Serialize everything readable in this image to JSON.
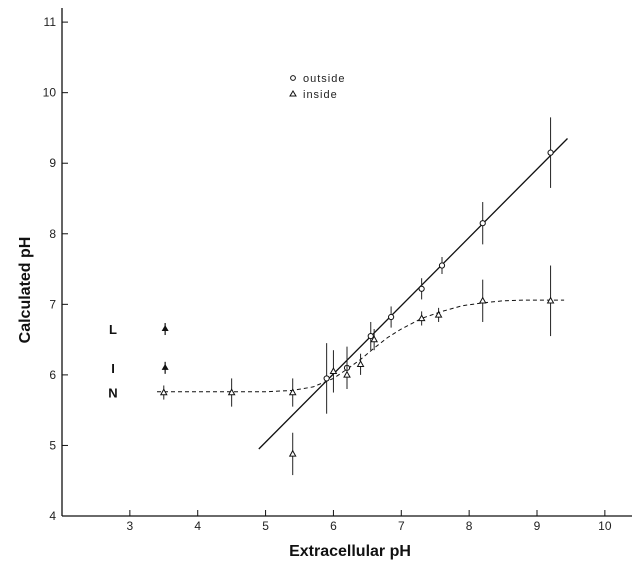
{
  "chart_data": {
    "type": "scatter",
    "xlabel": "Extracellular pH",
    "ylabel": "Calculated pH",
    "xlim": [
      2,
      10.4
    ],
    "ylim": [
      4,
      11.2
    ],
    "xticks": [
      3,
      4,
      5,
      6,
      7,
      8,
      9,
      10
    ],
    "yticks": [
      4,
      5,
      6,
      7,
      8,
      9,
      10,
      11
    ],
    "legend": {
      "position": "top-center",
      "entries": [
        {
          "marker": "circle-open",
          "label": "outside"
        },
        {
          "marker": "triangle-open",
          "label": "inside"
        }
      ]
    },
    "series": [
      {
        "name": "outside",
        "marker": "circle-open",
        "points": [
          {
            "x": 5.9,
            "y": 5.95,
            "err": 0.5
          },
          {
            "x": 6.2,
            "y": 6.1,
            "err": 0.3
          },
          {
            "x": 6.55,
            "y": 6.55,
            "err": 0.2
          },
          {
            "x": 6.85,
            "y": 6.82,
            "err": 0.15
          },
          {
            "x": 7.3,
            "y": 7.22,
            "err": 0.15
          },
          {
            "x": 7.6,
            "y": 7.55,
            "err": 0.12
          },
          {
            "x": 8.2,
            "y": 8.15,
            "err": 0.3
          },
          {
            "x": 9.2,
            "y": 9.15,
            "err": 0.5
          }
        ]
      },
      {
        "name": "inside",
        "marker": "triangle-open",
        "points": [
          {
            "x": 3.5,
            "y": 5.75,
            "err": 0.1
          },
          {
            "x": 4.5,
            "y": 5.75,
            "err": 0.2
          },
          {
            "x": 5.4,
            "y": 5.75,
            "err": 0.2
          },
          {
            "x": 5.4,
            "y": 4.88,
            "err": 0.3
          },
          {
            "x": 6.0,
            "y": 6.05,
            "err": 0.3
          },
          {
            "x": 6.2,
            "y": 6.0,
            "err": 0.2
          },
          {
            "x": 6.4,
            "y": 6.15,
            "err": 0.15
          },
          {
            "x": 6.6,
            "y": 6.5,
            "err": 0.15
          },
          {
            "x": 7.3,
            "y": 6.8,
            "err": 0.1
          },
          {
            "x": 7.55,
            "y": 6.85,
            "err": 0.1
          },
          {
            "x": 8.2,
            "y": 7.05,
            "err": 0.3
          },
          {
            "x": 9.2,
            "y": 7.05,
            "err": 0.5
          }
        ]
      }
    ],
    "lines": [
      {
        "style": "solid",
        "x": [
          4.9,
          9.45
        ],
        "y": [
          4.95,
          9.35
        ]
      },
      {
        "style": "dashed",
        "x": [
          3.4,
          4.0,
          4.5,
          5.0,
          5.4,
          5.7,
          6.0,
          6.2,
          6.4,
          6.6,
          6.8,
          7.0,
          7.3,
          7.6,
          7.9,
          8.2,
          8.5,
          8.8,
          9.1,
          9.4
        ],
        "y": [
          5.76,
          5.76,
          5.76,
          5.76,
          5.78,
          5.83,
          5.95,
          6.08,
          6.22,
          6.38,
          6.53,
          6.65,
          6.8,
          6.9,
          6.98,
          7.02,
          7.05,
          7.06,
          7.06,
          7.06
        ]
      }
    ],
    "side_labels": [
      {
        "letter": "L",
        "y": 6.65
      },
      {
        "letter": "I",
        "y": 6.1
      },
      {
        "letter": "N",
        "y": 5.75
      }
    ]
  }
}
